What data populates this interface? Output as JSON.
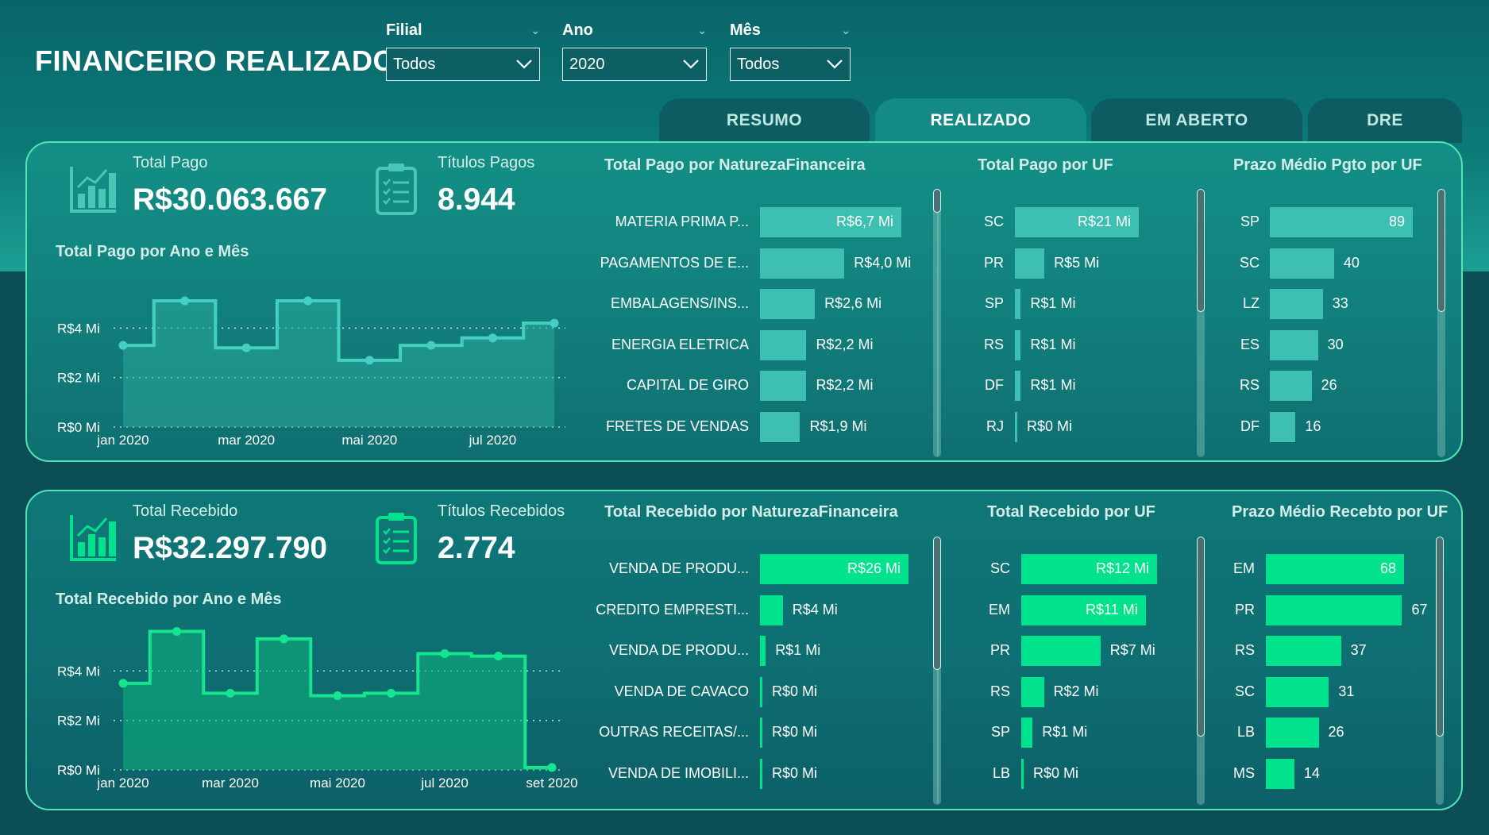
{
  "title": "FINANCEIRO REALIZADO",
  "filters": [
    {
      "label": "Filial",
      "value": "Todos"
    },
    {
      "label": "Ano",
      "value": "2020"
    },
    {
      "label": "Mês",
      "value": "Todos"
    }
  ],
  "tabs": [
    {
      "label": "RESUMO",
      "active": false
    },
    {
      "label": "REALIZADO",
      "active": true
    },
    {
      "label": "EM ABERTO",
      "active": false
    },
    {
      "label": "DRE",
      "active": false
    }
  ],
  "colors": {
    "pago_bar": "#3dbfb1",
    "recebido_bar": "#00e38c",
    "pago_line": "#44d0c1",
    "recebido_line": "#16e590"
  },
  "pago": {
    "total_label": "Total Pago",
    "total_value": "R$30.063.667",
    "titulos_label": "Títulos Pagos",
    "titulos_value": "8.944",
    "chart_title": "Total Pago por Ano e Mês",
    "natureza_title": "Total Pago por NaturezaFinanceira",
    "uf_title": "Total Pago por UF",
    "prazo_title": "Prazo Médio Pgto por UF"
  },
  "recebido": {
    "total_label": "Total Recebido",
    "total_value": "R$32.297.790",
    "titulos_label": "Títulos Recebidos",
    "titulos_value": "2.774",
    "chart_title": "Total Recebido por Ano e Mês",
    "natureza_title": "Total Recebido por NaturezaFinanceira",
    "uf_title": "Total Recebido por UF",
    "prazo_title": "Prazo Médio Recebto por UF"
  },
  "chart_data": [
    {
      "type": "area",
      "title": "Total Pago por Ano e Mês",
      "x": [
        "jan 2020",
        "fev 2020",
        "mar 2020",
        "abr 2020",
        "mai 2020",
        "jun 2020",
        "jul 2020",
        "ago 2020"
      ],
      "x_tick_labels": [
        "jan 2020",
        "mar 2020",
        "mai 2020",
        "jul 2020"
      ],
      "y_tick_labels": [
        "R$0 Mi",
        "R$2 Mi",
        "R$4 Mi"
      ],
      "values": [
        3.3,
        5.1,
        3.2,
        5.1,
        2.7,
        3.3,
        3.6,
        4.2
      ],
      "unit": "R$ Mi",
      "ylim": [
        0,
        6
      ]
    },
    {
      "type": "area",
      "title": "Total Recebido por Ano e Mês",
      "x": [
        "jan 2020",
        "fev 2020",
        "mar 2020",
        "abr 2020",
        "mai 2020",
        "jun 2020",
        "jul 2020",
        "ago 2020",
        "set 2020"
      ],
      "x_tick_labels": [
        "jan 2020",
        "mar 2020",
        "mai 2020",
        "jul 2020",
        "set 2020"
      ],
      "y_tick_labels": [
        "R$0 Mi",
        "R$2 Mi",
        "R$4 Mi"
      ],
      "values": [
        3.5,
        5.6,
        3.1,
        5.3,
        3.0,
        3.1,
        4.7,
        4.6,
        0.1
      ],
      "unit": "R$ Mi",
      "ylim": [
        0,
        6
      ]
    },
    {
      "type": "bar",
      "title": "Total Pago por NaturezaFinanceira",
      "categories": [
        "MATERIA PRIMA P...",
        "PAGAMENTOS DE E...",
        "EMBALAGENS/INS...",
        "ENERGIA ELETRICA",
        "CAPITAL DE GIRO",
        "FRETES DE VENDAS"
      ],
      "values": [
        6.7,
        4.0,
        2.6,
        2.2,
        2.2,
        1.9
      ],
      "labels": [
        "R$6,7 Mi",
        "R$4,0 Mi",
        "R$2,6 Mi",
        "R$2,2 Mi",
        "R$2,2 Mi",
        "R$1,9 Mi"
      ],
      "max": 6.7
    },
    {
      "type": "bar",
      "title": "Total Pago por UF",
      "categories": [
        "SC",
        "PR",
        "SP",
        "RS",
        "DF",
        "RJ"
      ],
      "values": [
        21,
        5,
        1,
        1,
        1,
        0
      ],
      "labels": [
        "R$21 Mi",
        "R$5 Mi",
        "R$1 Mi",
        "R$1 Mi",
        "R$1 Mi",
        "R$0 Mi"
      ],
      "max": 21
    },
    {
      "type": "bar",
      "title": "Prazo Médio Pgto por UF",
      "categories": [
        "SP",
        "SC",
        "LZ",
        "ES",
        "RS",
        "DF"
      ],
      "values": [
        89,
        40,
        33,
        30,
        26,
        16
      ],
      "labels": [
        "89",
        "40",
        "33",
        "30",
        "26",
        "16"
      ],
      "max": 89
    },
    {
      "type": "bar",
      "title": "Total Recebido por NaturezaFinanceira",
      "categories": [
        "VENDA DE PRODU...",
        "CREDITO EMPRESTI...",
        "VENDA DE PRODU...",
        "VENDA DE CAVACO",
        "OUTRAS RECEITAS/...",
        "VENDA DE IMOBILI..."
      ],
      "values": [
        26,
        4,
        1,
        0,
        0,
        0
      ],
      "labels": [
        "R$26 Mi",
        "R$4 Mi",
        "R$1 Mi",
        "R$0 Mi",
        "R$0 Mi",
        "R$0 Mi"
      ],
      "max": 26
    },
    {
      "type": "bar",
      "title": "Total Recebido por UF",
      "categories": [
        "SC",
        "EM",
        "PR",
        "RS",
        "SP",
        "LB"
      ],
      "values": [
        12,
        11,
        7,
        2,
        1,
        0
      ],
      "labels": [
        "R$12 Mi",
        "R$11 Mi",
        "R$7 Mi",
        "R$2 Mi",
        "R$1 Mi",
        "R$0 Mi"
      ],
      "max": 12
    },
    {
      "type": "bar",
      "title": "Prazo Médio Recebto por UF",
      "categories": [
        "EM",
        "PR",
        "RS",
        "SC",
        "LB",
        "MS"
      ],
      "values": [
        68,
        67,
        37,
        31,
        26,
        14
      ],
      "labels": [
        "68",
        "67",
        "37",
        "31",
        "26",
        "14"
      ],
      "max": 68
    }
  ]
}
